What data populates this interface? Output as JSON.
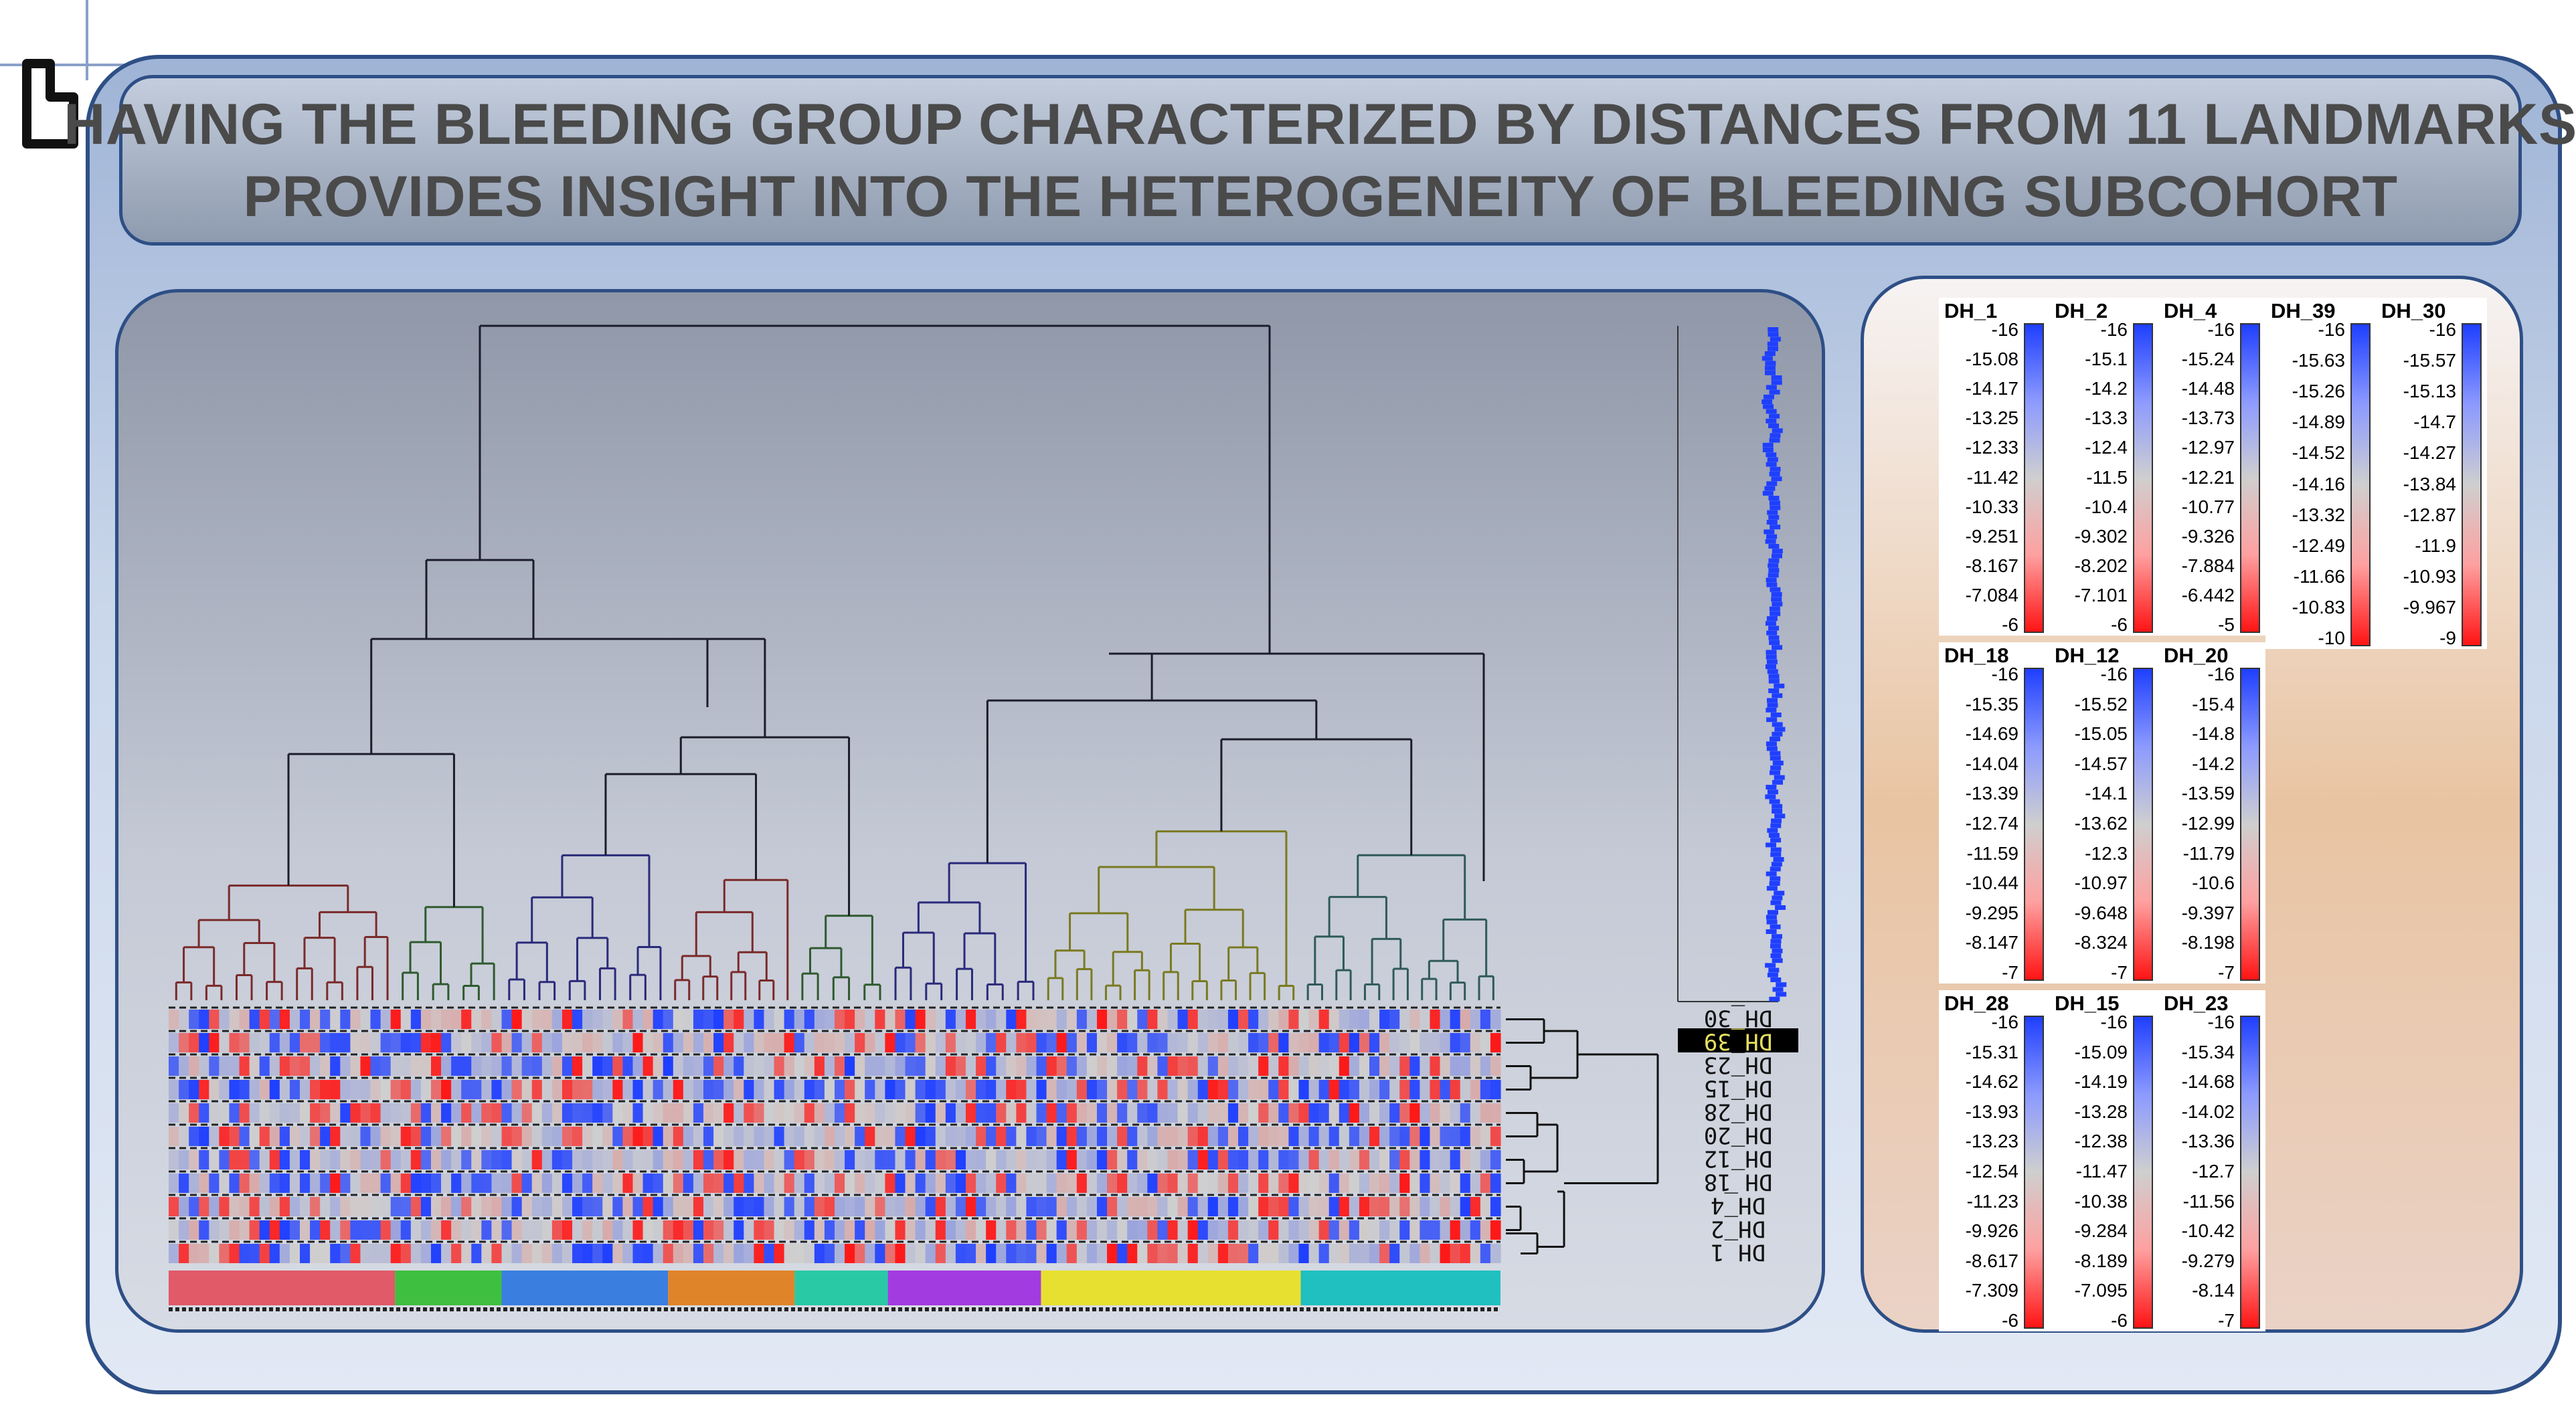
{
  "title": {
    "line1": "HAVING THE BLEEDING GROUP CHARACTERIZED BY DISTANCES FROM 11 LANDMARKS",
    "line2": "PROVIDES INSIGHT INTO THE HETEROGENEITY OF BLEEDING SUBCOHORT"
  },
  "row_labels": [
    "DH_30",
    "DH_39",
    "DH_23",
    "DH_15",
    "DH_28",
    "DH_20",
    "DH_12",
    "DH_18",
    "DH_4",
    "DH_2",
    "DH_1"
  ],
  "selected_row": "DH_39",
  "colors": {
    "border": "#2e4f86",
    "heat_low": "#1f3fff",
    "heat_mid": "#cfcfcf",
    "heat_high": "#ff1414",
    "cluster_colors": [
      "#e05a68",
      "#3fbf3f",
      "#3a7fe0",
      "#e0842a",
      "#2ac9a6",
      "#a23ce0",
      "#e8e030",
      "#20c0c0"
    ],
    "branch_colors": [
      "#7a2a2a",
      "#2f5a2f",
      "#2a2a7a",
      "#7a2a2a",
      "#2f5a2f",
      "#2a2a7a",
      "#7a7a20",
      "#2f5a5a"
    ]
  },
  "legends": [
    {
      "name": "DH_1",
      "values": [
        "-16",
        "-15.08",
        "-14.17",
        "-13.25",
        "-12.33",
        "-11.42",
        "-10.33",
        "-9.251",
        "-8.167",
        "-7.084",
        "-6"
      ]
    },
    {
      "name": "DH_2",
      "values": [
        "-16",
        "-15.1",
        "-14.2",
        "-13.3",
        "-12.4",
        "-11.5",
        "-10.4",
        "-9.302",
        "-8.202",
        "-7.101",
        "-6"
      ]
    },
    {
      "name": "DH_4",
      "values": [
        "-16",
        "-15.24",
        "-14.48",
        "-13.73",
        "-12.97",
        "-12.21",
        "-10.77",
        "-9.326",
        "-7.884",
        "-6.442",
        "-5"
      ]
    },
    {
      "name": "DH_39",
      "values": [
        "-16",
        "-15.63",
        "-15.26",
        "-14.89",
        "-14.52",
        "-14.16",
        "-13.32",
        "-12.49",
        "-11.66",
        "-10.83",
        "-10"
      ]
    },
    {
      "name": "DH_30",
      "values": [
        "-16",
        "-15.57",
        "-15.13",
        "-14.7",
        "-14.27",
        "-13.84",
        "-12.87",
        "-11.9",
        "-10.93",
        "-9.967",
        "-9"
      ]
    },
    {
      "name": "DH_18",
      "values": [
        "-16",
        "-15.35",
        "-14.69",
        "-14.04",
        "-13.39",
        "-12.74",
        "-11.59",
        "-10.44",
        "-9.295",
        "-8.147",
        "-7"
      ]
    },
    {
      "name": "DH_12",
      "values": [
        "-16",
        "-15.52",
        "-15.05",
        "-14.57",
        "-14.1",
        "-13.62",
        "-12.3",
        "-10.97",
        "-9.648",
        "-8.324",
        "-7"
      ]
    },
    {
      "name": "DH_20",
      "values": [
        "-16",
        "-15.4",
        "-14.8",
        "-14.2",
        "-13.59",
        "-12.99",
        "-11.79",
        "-10.6",
        "-9.397",
        "-8.198",
        "-7"
      ]
    },
    {
      "name": "DH_28",
      "values": [
        "-16",
        "-15.31",
        "-14.62",
        "-13.93",
        "-13.23",
        "-12.54",
        "-11.23",
        "-9.926",
        "-8.617",
        "-7.309",
        "-6"
      ]
    },
    {
      "name": "DH_15",
      "values": [
        "-16",
        "-15.09",
        "-14.19",
        "-13.28",
        "-12.38",
        "-11.47",
        "-10.38",
        "-9.284",
        "-8.189",
        "-7.095",
        "-6"
      ]
    },
    {
      "name": "DH_23",
      "values": [
        "-16",
        "-15.34",
        "-14.68",
        "-14.02",
        "-13.36",
        "-12.7",
        "-11.56",
        "-10.42",
        "-9.279",
        "-8.14",
        "-7"
      ]
    }
  ]
}
